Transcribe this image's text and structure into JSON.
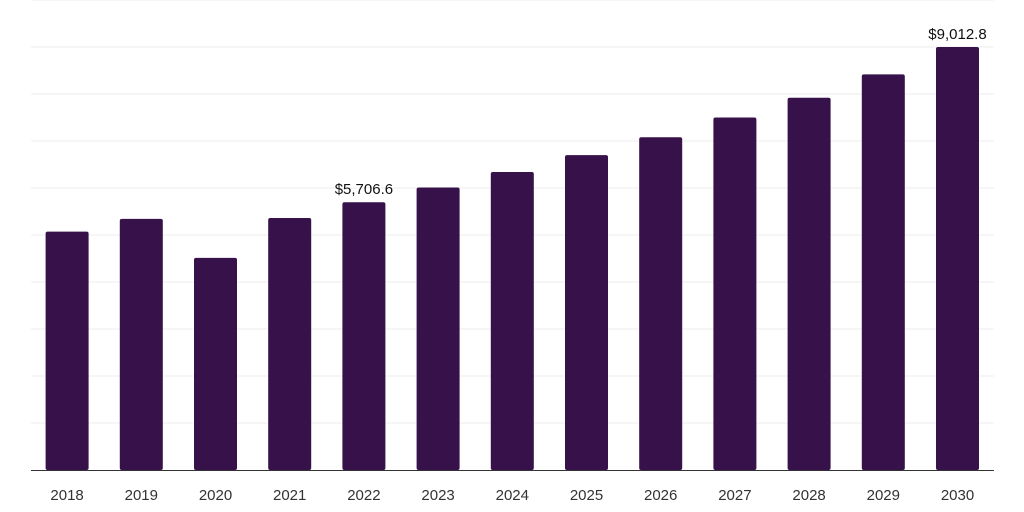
{
  "chart_data": {
    "type": "bar",
    "categories": [
      "2018",
      "2019",
      "2020",
      "2021",
      "2022",
      "2023",
      "2024",
      "2025",
      "2026",
      "2027",
      "2028",
      "2029",
      "2030"
    ],
    "series": [
      {
        "values": [
          5080,
          5350,
          4520,
          5370,
          5706.6,
          6020,
          6350,
          6710,
          7090,
          7510,
          7930,
          8430,
          9012.8
        ],
        "color": "#36114a",
        "data_labels": [
          "",
          "",
          "",
          "",
          "$5,706.6",
          "",
          "",
          "",
          "",
          "",
          "",
          "",
          "$9,012.8"
        ]
      }
    ],
    "title": "",
    "xlabel": "",
    "ylabel": "",
    "ylim": [
      0,
      9012.8
    ],
    "grid": true,
    "legend": "none"
  }
}
